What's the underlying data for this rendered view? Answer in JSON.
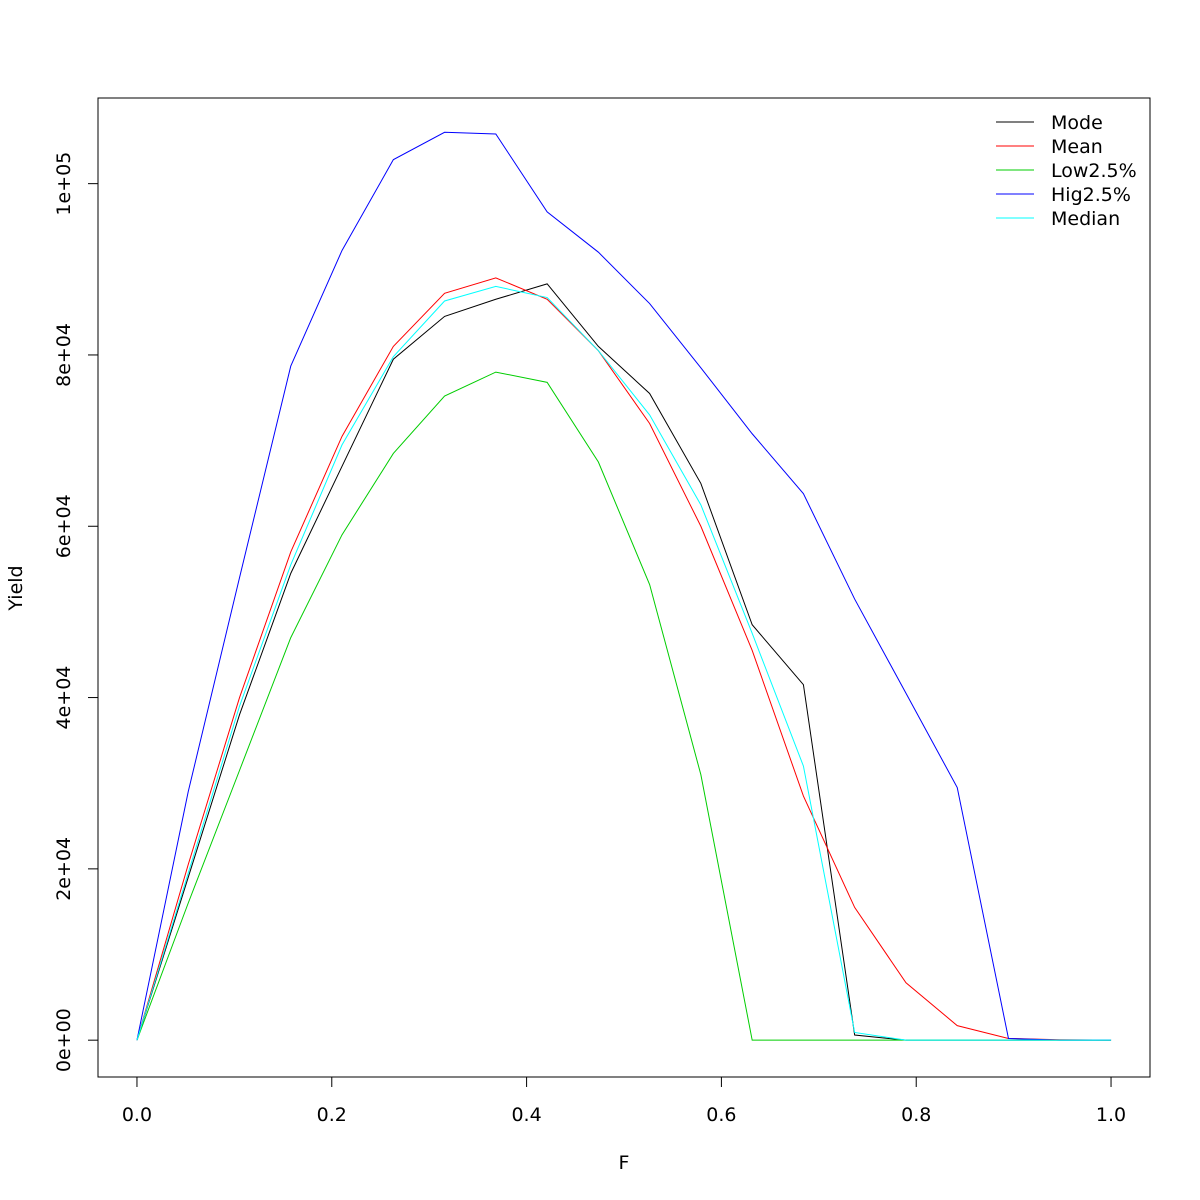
{
  "chart_data": {
    "type": "line",
    "title": "",
    "xlabel": "F",
    "ylabel": "Yield",
    "xlim": [
      -0.04,
      1.04
    ],
    "ylim": [
      -4300,
      110000
    ],
    "x_ticks": [
      0.0,
      0.2,
      0.4,
      0.6,
      0.8,
      1.0
    ],
    "x_tick_labels": [
      "0.0",
      "0.2",
      "0.4",
      "0.6",
      "0.8",
      "1.0"
    ],
    "y_ticks": [
      0,
      20000,
      40000,
      60000,
      80000,
      100000
    ],
    "y_tick_labels": [
      "0e+00",
      "2e+04",
      "4e+04",
      "6e+04",
      "8e+04",
      "1e+05"
    ],
    "grid": false,
    "legend_position": "top-right",
    "x": [
      0.0,
      0.0526,
      0.1053,
      0.1579,
      0.2105,
      0.2632,
      0.3158,
      0.3684,
      0.4211,
      0.4737,
      0.5263,
      0.5789,
      0.6316,
      0.6842,
      0.7368,
      0.7895,
      0.8421,
      0.8947,
      0.9474,
      1.0
    ],
    "series": [
      {
        "name": "Mode",
        "color": "#000000",
        "values": [
          0,
          19000,
          38000,
          54500,
          67000,
          79500,
          84500,
          86500,
          88300,
          81000,
          75500,
          65000,
          48500,
          41500,
          600,
          0,
          0,
          0,
          0,
          0
        ]
      },
      {
        "name": "Mean",
        "color": "#ff0000",
        "values": [
          0,
          20500,
          40000,
          57000,
          70500,
          81000,
          87200,
          89000,
          86500,
          80500,
          72000,
          60000,
          45500,
          28500,
          15500,
          6700,
          1700,
          200,
          50,
          0
        ]
      },
      {
        "name": "Low2.5%",
        "color": "#00cd00",
        "values": [
          0,
          16000,
          31500,
          47000,
          59000,
          68500,
          75200,
          78000,
          76800,
          67500,
          53200,
          31000,
          0,
          0,
          0,
          0,
          0,
          0,
          0,
          0
        ]
      },
      {
        "name": "Hig2.5%",
        "color": "#0000ff",
        "values": [
          0,
          29000,
          54000,
          78700,
          92200,
          102800,
          106000,
          105800,
          96700,
          92000,
          86000,
          78500,
          70800,
          63800,
          51500,
          40500,
          29500,
          200,
          0,
          0
        ]
      },
      {
        "name": "Median",
        "color": "#00ffff",
        "values": [
          0,
          19500,
          39000,
          55500,
          69500,
          79800,
          86300,
          88000,
          86700,
          80500,
          73000,
          62500,
          47500,
          32000,
          900,
          0,
          0,
          0,
          0,
          0
        ]
      }
    ]
  }
}
